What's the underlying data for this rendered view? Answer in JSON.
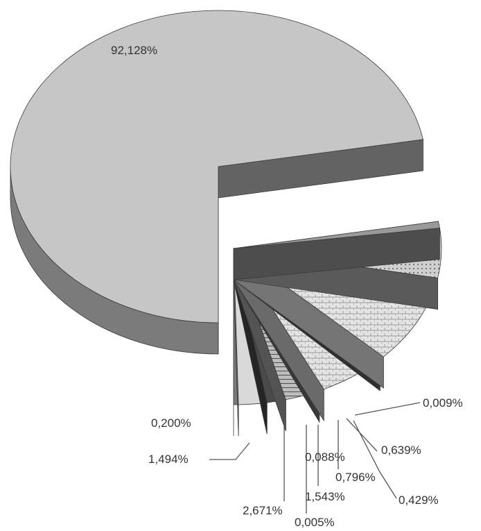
{
  "chart_data": {
    "type": "pie",
    "style": "3d-exploded",
    "title": "",
    "legend": "none",
    "slices": [
      {
        "label": "92,128%",
        "value": 92.128,
        "color": "#c6c6c6"
      },
      {
        "label": "0,200%",
        "value": 0.2,
        "color": "#9a9a9a"
      },
      {
        "label": "1,494%",
        "value": 1.494,
        "color": "#b4b4b4"
      },
      {
        "label": "2,671%",
        "value": 2.671,
        "color": "#e9e9e9"
      },
      {
        "label": "0,005%",
        "value": 0.005,
        "color": "#5e5e5e"
      },
      {
        "label": "1,543%",
        "value": 1.543,
        "color": "#d3d3d3"
      },
      {
        "label": "0,088%",
        "value": 0.088,
        "color": "#6d6d6d"
      },
      {
        "label": "0,796%",
        "value": 0.796,
        "color": "#a5a5a5"
      },
      {
        "label": "0,429%",
        "value": 0.429,
        "color": "#4a4a4a"
      },
      {
        "label": "0,639%",
        "value": 0.639,
        "color": "#d9d9d9"
      },
      {
        "label": "0,009%",
        "value": 0.009,
        "color": "#7b7b7b"
      }
    ]
  }
}
